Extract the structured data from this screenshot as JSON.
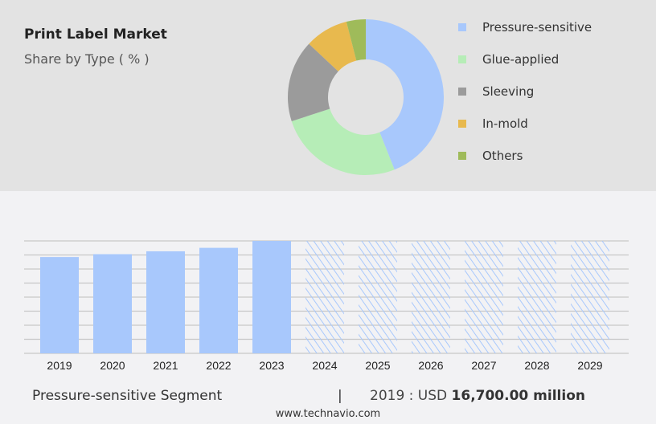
{
  "header": {
    "title": "Print Label Market",
    "subtitle": "Share by Type ( % )"
  },
  "chart_data": [
    {
      "type": "pie",
      "title": "Print Label Market",
      "subtitle": "Share by Type ( % )",
      "labels": [
        "Pressure-sensitive",
        "Glue-applied",
        "Sleeving",
        "In-mold",
        "Others"
      ],
      "values": [
        44,
        26,
        17,
        9,
        4
      ],
      "colors": [
        "#a8c8fc",
        "#b6edb7",
        "#9b9b9b",
        "#e8b94e",
        "#9fbb5a"
      ],
      "legend": "right"
    },
    {
      "type": "bar",
      "categories": [
        "2019",
        "2020",
        "2021",
        "2022",
        "2023",
        "2024",
        "2025",
        "2026",
        "2027",
        "2028",
        "2029"
      ],
      "values": [
        16700,
        17200,
        17700,
        18300,
        19500,
        null,
        null,
        null,
        null,
        null,
        null
      ],
      "forecast_from": "2024",
      "ylim": [
        0,
        19500
      ],
      "grid": true,
      "xlabel": "",
      "ylabel": "",
      "color": "#a8c8fc"
    }
  ],
  "footer": {
    "segment": "Pressure-sensitive Segment",
    "separator": "|",
    "year_label": "2019 : USD ",
    "value": "16,700.00 million",
    "url": "www.technavio.com"
  }
}
